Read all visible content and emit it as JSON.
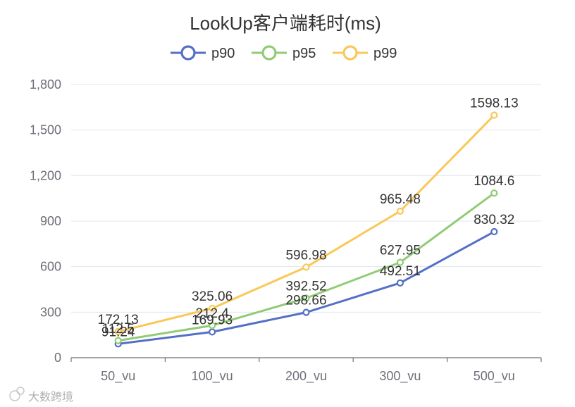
{
  "chart_data": {
    "type": "line",
    "title": "LookUp客户端耗时(ms)",
    "categories": [
      "50_vu",
      "100_vu",
      "200_vu",
      "300_vu",
      "500_vu"
    ],
    "ylim": [
      0,
      1800
    ],
    "yticks": [
      0,
      300,
      600,
      900,
      1200,
      1500,
      1800
    ],
    "ytick_labels": [
      "0",
      "300",
      "600",
      "900",
      "1,200",
      "1,500",
      "1,800"
    ],
    "grid": true,
    "legend_position": "top-center",
    "series": [
      {
        "name": "p90",
        "color": "#5470c6",
        "values": [
          91.24,
          169.93,
          298.66,
          492.51,
          830.32
        ],
        "labels": [
          "91.24",
          "169.93",
          "298.66",
          "492.51",
          "830.32"
        ]
      },
      {
        "name": "p95",
        "color": "#91cc75",
        "values": [
          112.5,
          212.4,
          392.52,
          627.95,
          1084.6
        ],
        "labels": [
          "112.5",
          "212.4",
          "392.52",
          "627.95",
          "1084.6"
        ]
      },
      {
        "name": "p99",
        "color": "#fac858",
        "values": [
          172.13,
          325.06,
          596.98,
          965.48,
          1598.13
        ],
        "labels": [
          "172.13",
          "325.06",
          "596.98",
          "965.48",
          "1598.13"
        ]
      }
    ]
  },
  "watermark": {
    "text": "大数跨境",
    "icon": "cc-logo-icon"
  }
}
